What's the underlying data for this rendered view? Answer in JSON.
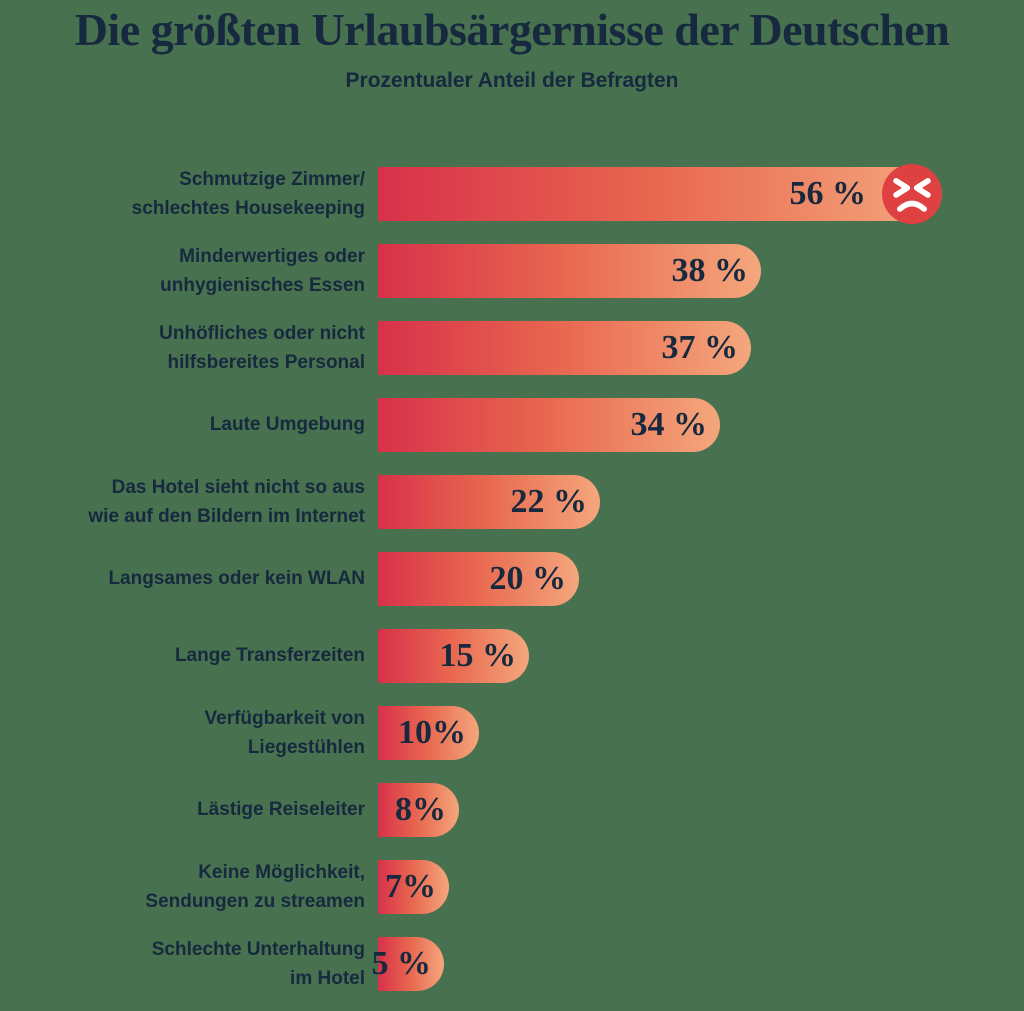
{
  "header": {
    "title": "Die größten Urlaubsärgernisse der Deutschen",
    "subtitle": "Prozentualer Anteil der Befragten"
  },
  "colors": {
    "background": "#47714F",
    "text_navy": "#16293E",
    "bar_gradient_start": "#D8314A",
    "bar_gradient_mid": "#E8664F",
    "bar_gradient_end": "#F4A77C",
    "angry_icon_red": "#DF4143",
    "icon_face_features": "#FFFFFF"
  },
  "chart_data": {
    "type": "bar",
    "orientation": "horizontal",
    "title": "Die größten Urlaubsärgernisse der Deutschen",
    "subtitle": "Prozentualer Anteil der Befragten",
    "xlabel": "",
    "ylabel": "",
    "xlim": [
      0,
      56
    ],
    "grid": false,
    "legend": false,
    "categories": [
      "Schmutzige Zimmer/ schlechtes Housekeeping",
      "Minderwertiges oder unhygienisches Essen",
      "Unhöfliches oder nicht hilfsbereites Personal",
      "Laute Umgebung",
      "Das Hotel sieht nicht so aus wie auf den Bildern im Internet",
      "Langsames oder kein WLAN",
      "Lange Transferzeiten",
      "Verfügbarkeit von Liegestühlen",
      "Lästige Reiseleiter",
      "Keine Möglichkeit, Sendungen zu streamen",
      "Schlechte Unterhaltung im Hotel"
    ],
    "values": [
      56,
      38,
      37,
      34,
      22,
      20,
      15,
      10,
      8,
      7,
      5
    ],
    "rows": [
      {
        "label_lines": [
          "Schmutzige Zimmer/",
          "schlechtes Housekeeping"
        ],
        "value": 56,
        "display": "56 %",
        "icon": "angry-face"
      },
      {
        "label_lines": [
          "Minderwertiges oder",
          "unhygienisches Essen"
        ],
        "value": 38,
        "display": "38 %",
        "icon": null
      },
      {
        "label_lines": [
          "Unhöfliches oder nicht",
          "hilfsbereites Personal"
        ],
        "value": 37,
        "display": "37 %",
        "icon": null
      },
      {
        "label_lines": [
          "Laute Umgebung"
        ],
        "value": 34,
        "display": "34 %",
        "icon": null
      },
      {
        "label_lines": [
          "Das Hotel sieht nicht so aus",
          "wie auf den Bildern im Internet"
        ],
        "value": 22,
        "display": "22 %",
        "icon": null
      },
      {
        "label_lines": [
          "Langsames oder kein WLAN"
        ],
        "value": 20,
        "display": "20 %",
        "icon": null
      },
      {
        "label_lines": [
          "Lange Transferzeiten"
        ],
        "value": 15,
        "display": "15 %",
        "icon": null
      },
      {
        "label_lines": [
          "Verfügbarkeit von",
          "Liegestühlen"
        ],
        "value": 10,
        "display": "10%",
        "icon": null
      },
      {
        "label_lines": [
          "Lästige Reiseleiter"
        ],
        "value": 8,
        "display": "8%",
        "icon": null
      },
      {
        "label_lines": [
          "Keine Möglichkeit,",
          "Sendungen zu streamen"
        ],
        "value": 7,
        "display": "7%",
        "icon": null
      },
      {
        "label_lines": [
          "Schlechte Unterhaltung",
          "im Hotel"
        ],
        "value": 5,
        "display": "5 %",
        "icon": null
      }
    ]
  }
}
